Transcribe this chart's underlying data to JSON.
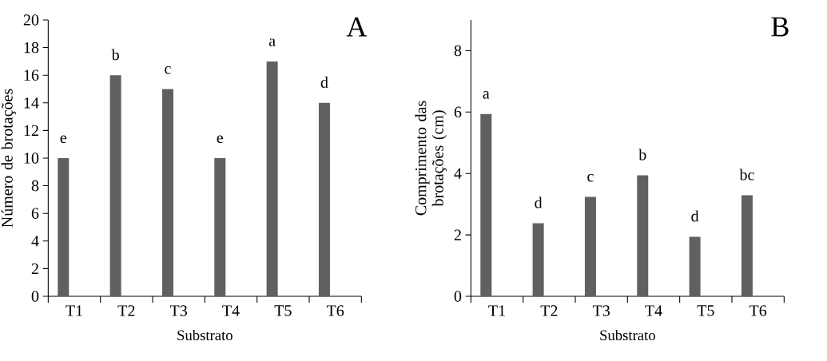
{
  "chart_data": [
    {
      "type": "bar",
      "title": "A",
      "xlabel": "Substrato",
      "ylabel": "Número de brotações",
      "categories": [
        "T1",
        "T2",
        "T3",
        "T4",
        "T5",
        "T6"
      ],
      "values": [
        10,
        16,
        15,
        10,
        17,
        14
      ],
      "value_labels": [
        "e",
        "b",
        "c",
        "e",
        "a",
        "d"
      ],
      "color": "#606060",
      "ylim": [
        0,
        20
      ],
      "yticks": [
        0,
        2,
        4,
        6,
        8,
        10,
        12,
        14,
        16,
        18,
        20
      ]
    },
    {
      "type": "bar",
      "title": "B",
      "xlabel": "Substrato",
      "ylabel": "Comprimento das brotações (cm)",
      "categories": [
        "T1",
        "T2",
        "T3",
        "T4",
        "T5",
        "T6"
      ],
      "values": [
        5.94,
        2.38,
        3.24,
        3.94,
        1.94,
        3.29
      ],
      "value_labels": [
        "a",
        "d",
        "c",
        "b",
        "d",
        "bc"
      ],
      "color": "#606060",
      "ylim": [
        0,
        9
      ],
      "yticks": [
        0,
        2,
        4,
        6,
        8
      ]
    }
  ]
}
